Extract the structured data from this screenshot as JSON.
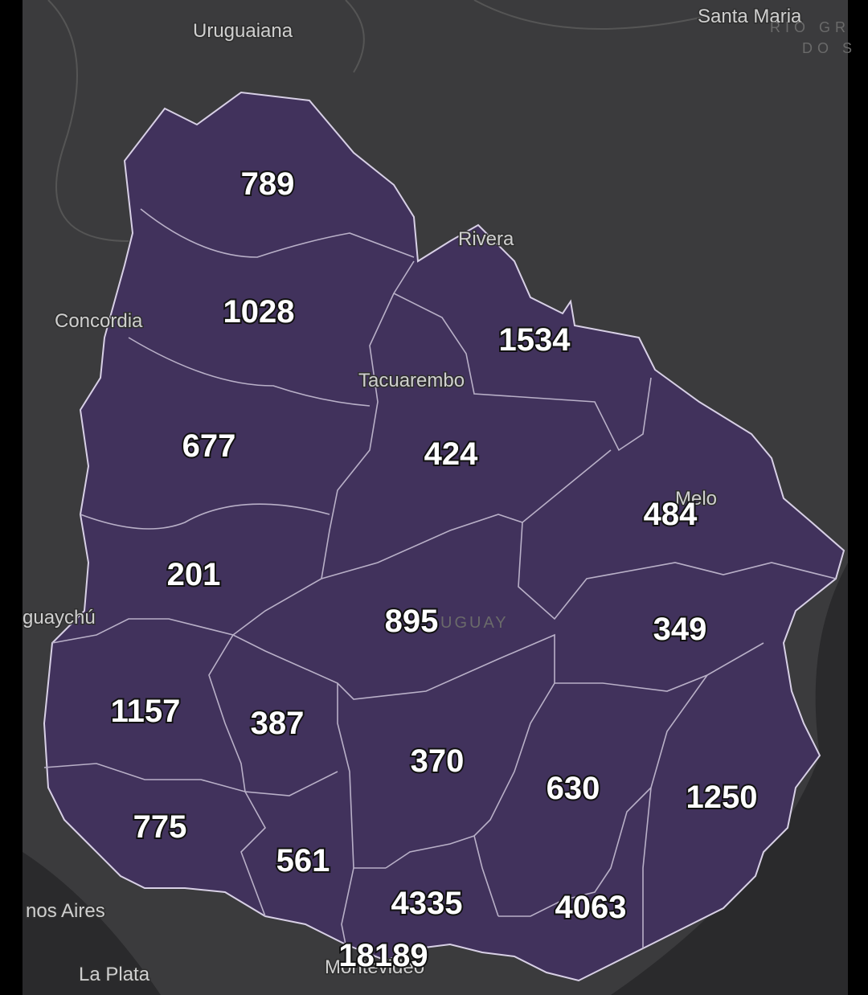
{
  "places": [
    "Uruguaiana",
    "Santa Maria",
    "RIO GR",
    "DO S",
    "Rivera",
    "Concordia",
    "Tacuarembo",
    "Melo",
    "UGUAY",
    "guaychú",
    "nos Aires",
    "La Plata",
    "Montevideo"
  ],
  "regions": [
    "789",
    "1028",
    "1534",
    "677",
    "424",
    "484",
    "201",
    "895",
    "349",
    "1157",
    "387",
    "370",
    "630",
    "1250",
    "775",
    "561",
    "4335",
    "4063",
    "18189"
  ]
}
